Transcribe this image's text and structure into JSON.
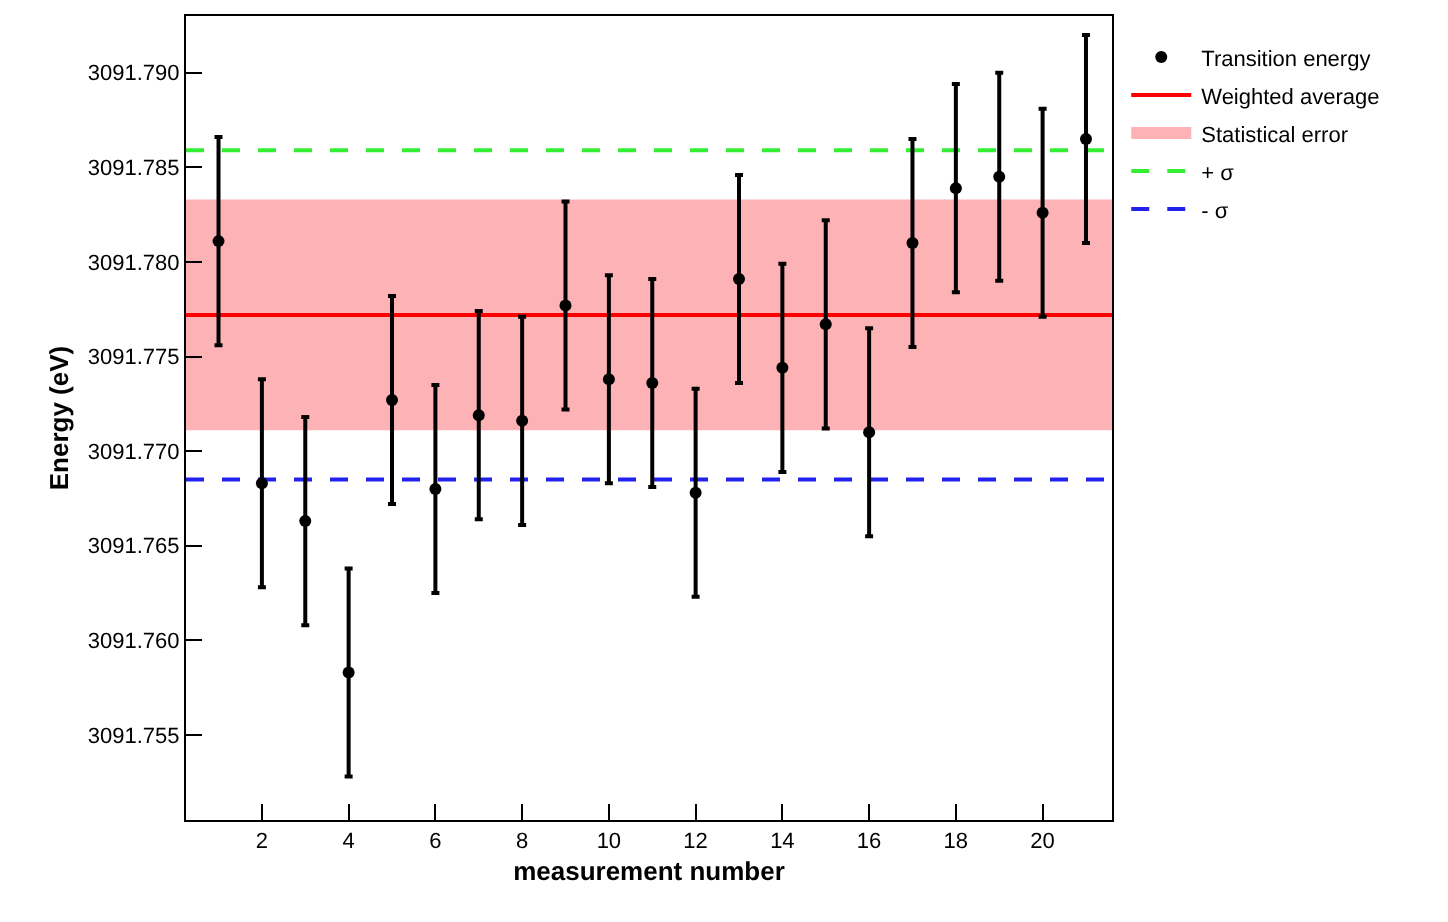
{
  "chart_data": {
    "type": "scatter",
    "xlabel": "measurement number",
    "ylabel": "Energy (eV)",
    "x": [
      1,
      2,
      3,
      4,
      5,
      6,
      7,
      8,
      9,
      10,
      11,
      12,
      13,
      14,
      15,
      16,
      17,
      18,
      19,
      20,
      21
    ],
    "series": [
      {
        "name": "Transition energy",
        "color": "#000000",
        "values": [
          3091.7811,
          3091.7683,
          3091.7663,
          3091.7583,
          3091.7727,
          3091.768,
          3091.7719,
          3091.7716,
          3091.7777,
          3091.7738,
          3091.7736,
          3091.7678,
          3091.7791,
          3091.7744,
          3091.7767,
          3091.771,
          3091.781,
          3091.7839,
          3091.7845,
          3091.7826,
          3091.7865
        ],
        "errors": [
          0.0055,
          0.0055,
          0.0055,
          0.0055,
          0.0055,
          0.0055,
          0.0055,
          0.0055,
          0.0055,
          0.0055,
          0.0055,
          0.0055,
          0.0055,
          0.0055,
          0.0055,
          0.0055,
          0.0055,
          0.0055,
          0.0055,
          0.0055,
          0.0055
        ]
      }
    ],
    "ref_lines": [
      {
        "axis": "y",
        "value": 3091.7772,
        "label": "Weighted average",
        "color": "#ff0000",
        "line_style": "solid"
      },
      {
        "axis": "y",
        "value": 3091.7859,
        "label": "+ σ",
        "color": "#33ee33",
        "line_style": "dashed"
      },
      {
        "axis": "y",
        "value": 3091.7685,
        "label": "- σ",
        "color": "#2222ee",
        "line_style": "dashed"
      }
    ],
    "bands": [
      {
        "axis": "y",
        "from": 3091.7711,
        "to": 3091.7833,
        "label": "Statistical error",
        "color": "#fdb3b5"
      }
    ],
    "xlim": [
      0.25,
      21.6
    ],
    "xticks": [
      2,
      4,
      6,
      8,
      10,
      12,
      14,
      16,
      18,
      20
    ],
    "ylim": [
      3091.7505,
      3091.793
    ],
    "yticks": [
      3091.755,
      {
        "value": 3091.76,
        "label": "3091.760"
      },
      3091.765,
      {
        "value": 3091.77,
        "label": "3091.770"
      },
      3091.775,
      {
        "value": 3091.78,
        "label": "3091.780"
      },
      3091.785,
      {
        "value": 3091.79,
        "label": "3091.790"
      }
    ],
    "marker": "circle",
    "legend": "top right"
  }
}
